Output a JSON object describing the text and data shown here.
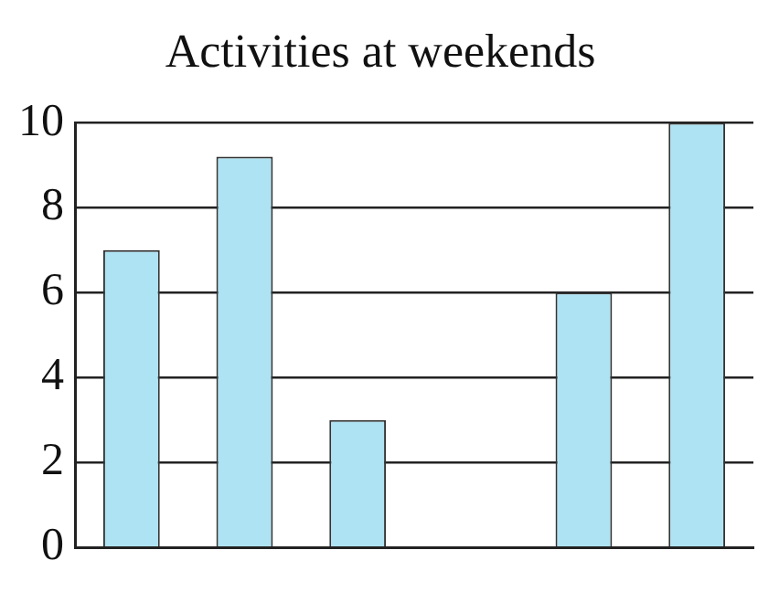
{
  "chart_data": {
    "type": "bar",
    "title": "Activities at weekends",
    "categories": [
      null,
      null,
      null,
      null,
      null,
      null
    ],
    "values": [
      7,
      9.2,
      3,
      null,
      6,
      10
    ],
    "color": "#aee3f3",
    "ylim": [
      0,
      10
    ],
    "yticks": [
      0,
      2,
      4,
      6,
      8,
      10
    ],
    "grid": "y",
    "legend": false
  }
}
